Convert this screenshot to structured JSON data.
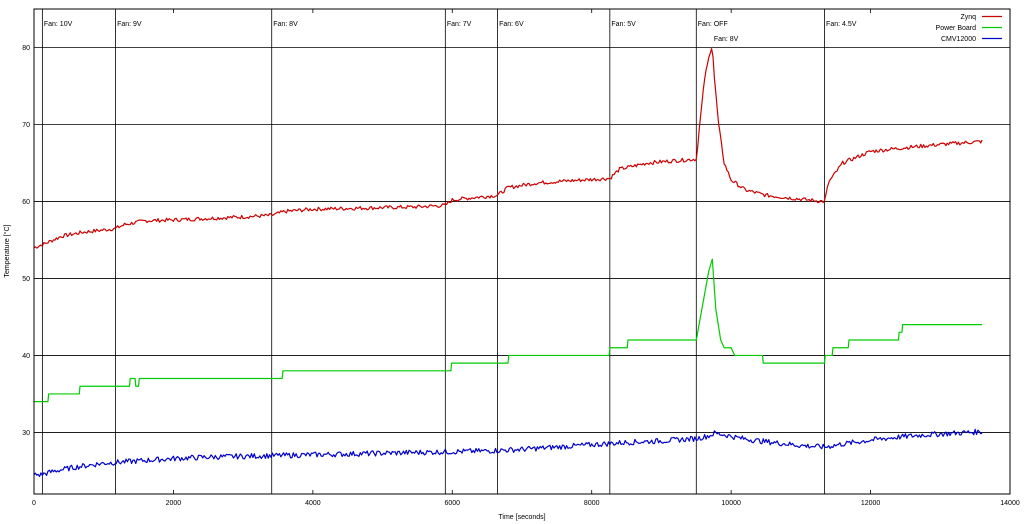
{
  "chart_data": {
    "type": "line",
    "xlabel": "Time [seconds]",
    "ylabel": "Temperature [°C]",
    "xlim": [
      0,
      14000
    ],
    "ylim": [
      22,
      85
    ],
    "xticks": [
      0,
      2000,
      4000,
      6000,
      8000,
      10000,
      12000,
      14000
    ],
    "yticks": [
      30,
      40,
      50,
      60,
      70,
      80
    ],
    "grid": "horizontal at y ticks; vertical at fan changes",
    "legend_position": "top-right",
    "colors": {
      "Zynq": "#cc0000",
      "Power Board": "#00cc00",
      "CMV12000": "#0000cc"
    },
    "annotations": [
      {
        "x": 120,
        "label": "Fan: 10V",
        "row": 0
      },
      {
        "x": 1170,
        "label": "Fan: 9V",
        "row": 0
      },
      {
        "x": 3410,
        "label": "Fan: 8V",
        "row": 0
      },
      {
        "x": 5900,
        "label": "Fan: 7V",
        "row": 0
      },
      {
        "x": 6650,
        "label": "Fan: 6V",
        "row": 0
      },
      {
        "x": 8260,
        "label": "Fan: 5V",
        "row": 0
      },
      {
        "x": 9500,
        "label": "Fan: OFF",
        "row": 0
      },
      {
        "x": 9730,
        "label": "Fan: 8V",
        "row": 1
      },
      {
        "x": 11340,
        "label": "Fan: 4.5V",
        "row": 0
      }
    ],
    "series": [
      {
        "name": "Zynq",
        "color": "#cc0000",
        "x": [
          0,
          150,
          400,
          700,
          1000,
          1170,
          1300,
          1600,
          2000,
          2500,
          3000,
          3410,
          3600,
          4000,
          4500,
          5000,
          5500,
          5900,
          6000,
          6300,
          6650,
          6800,
          7200,
          7700,
          8260,
          8400,
          8800,
          9200,
          9500,
          9550,
          9620,
          9700,
          9730,
          9760,
          9820,
          9900,
          10000,
          10200,
          10500,
          10800,
          11100,
          11340,
          11400,
          11600,
          12000,
          12500,
          13000,
          13600
        ],
        "y": [
          54.0,
          54.5,
          55.5,
          56.0,
          56.3,
          56.5,
          57.0,
          57.5,
          57.6,
          57.8,
          58.0,
          58.2,
          58.7,
          59.0,
          59.1,
          59.2,
          59.3,
          59.5,
          60.2,
          60.5,
          60.8,
          61.8,
          62.4,
          62.7,
          63.0,
          64.2,
          65.0,
          65.3,
          65.5,
          70.0,
          76.0,
          79.5,
          80.3,
          76.0,
          70.0,
          65.0,
          62.8,
          61.5,
          60.8,
          60.5,
          60.2,
          60.0,
          62.5,
          65.0,
          66.5,
          67.0,
          67.4,
          67.8
        ]
      },
      {
        "name": "Power Board",
        "color": "#00cc00",
        "x": [
          0,
          200,
          210,
          650,
          660,
          1370,
          1380,
          1450,
          1460,
          1500,
          1510,
          3560,
          3570,
          5980,
          5990,
          6050,
          6060,
          6800,
          6810,
          8250,
          8260,
          8510,
          8520,
          9500,
          9600,
          9680,
          9730,
          9780,
          9850,
          9900,
          10000,
          10050,
          10450,
          10460,
          10500,
          10510,
          11340,
          11350,
          11450,
          11460,
          11680,
          11690,
          12400,
          12410,
          12450,
          12460,
          13600
        ],
        "y": [
          34,
          34,
          35,
          35,
          36,
          36,
          37,
          37,
          36,
          36,
          37,
          37,
          38,
          38,
          39,
          39,
          39,
          39,
          40,
          40,
          41,
          41,
          42,
          42,
          47,
          51,
          52.5,
          46,
          42,
          41,
          41,
          40,
          40,
          39,
          39,
          39,
          39,
          40,
          40,
          41,
          41,
          42,
          42,
          43,
          43,
          44,
          44
        ]
      },
      {
        "name": "CMV12000",
        "color": "#0000cc",
        "x": [
          0,
          100,
          300,
          600,
          1000,
          1500,
          2000,
          2500,
          3000,
          3500,
          4000,
          4500,
          5000,
          5500,
          6000,
          6500,
          7000,
          7500,
          8000,
          8500,
          9000,
          9500,
          9700,
          9760,
          9900,
          10100,
          10400,
          10700,
          11000,
          11340,
          11600,
          12000,
          12400,
          12800,
          13200,
          13600
        ],
        "y": [
          24.5,
          24.5,
          25.0,
          25.5,
          26.0,
          26.3,
          26.6,
          26.8,
          26.9,
          27.0,
          27.1,
          27.2,
          27.3,
          27.4,
          27.5,
          27.6,
          27.8,
          28.1,
          28.4,
          28.7,
          28.9,
          29.2,
          29.6,
          29.9,
          29.7,
          29.3,
          28.9,
          28.6,
          28.3,
          28.1,
          28.5,
          29.0,
          29.4,
          29.7,
          29.9,
          30.1
        ]
      }
    ]
  }
}
